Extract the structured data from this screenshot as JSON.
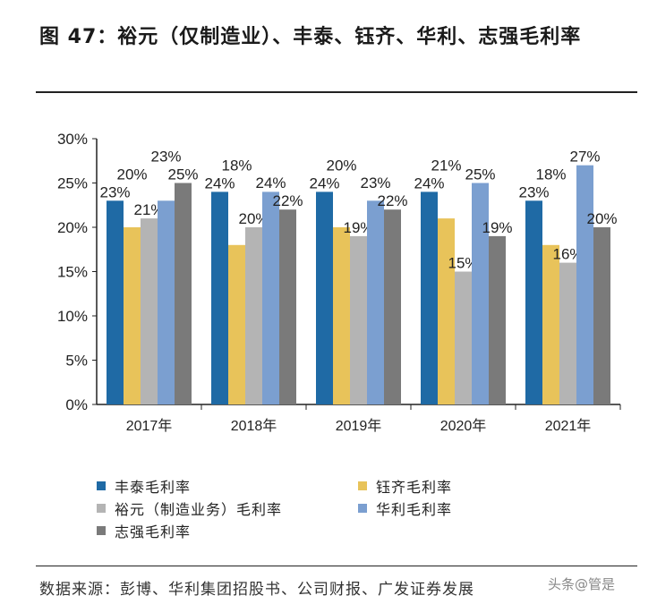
{
  "title": "图 47：裕元（仅制造业）、丰泰、钰齐、华利、志强毛利率",
  "source": "数据来源：彭博、华利集团招股书、公司财报、广发证券发展",
  "watermark": "头条@管是",
  "chart_data": {
    "type": "bar",
    "categories": [
      "2017年",
      "2018年",
      "2019年",
      "2020年",
      "2021年"
    ],
    "ylim": [
      0,
      30
    ],
    "yticks": [
      "0%",
      "5%",
      "10%",
      "15%",
      "20%",
      "25%",
      "30%"
    ],
    "grid": false,
    "legend_placement": "bottom",
    "series": [
      {
        "name": "丰泰毛利率",
        "color": "#1f6aa5",
        "values": [
          23,
          24,
          24,
          24,
          23
        ]
      },
      {
        "name": "钰齐毛利率",
        "color": "#e8c35a",
        "values": [
          20,
          18,
          20,
          21,
          18
        ]
      },
      {
        "name": "裕元（制造业务）毛利率",
        "color": "#b4b4b4",
        "values": [
          21,
          20,
          19,
          15,
          16
        ]
      },
      {
        "name": "华利毛利率",
        "color": "#7b9fd0",
        "values": [
          23,
          24,
          23,
          25,
          27
        ]
      },
      {
        "name": "志强毛利率",
        "color": "#7a7a7a",
        "values": [
          25,
          22,
          22,
          19,
          20
        ]
      }
    ]
  }
}
